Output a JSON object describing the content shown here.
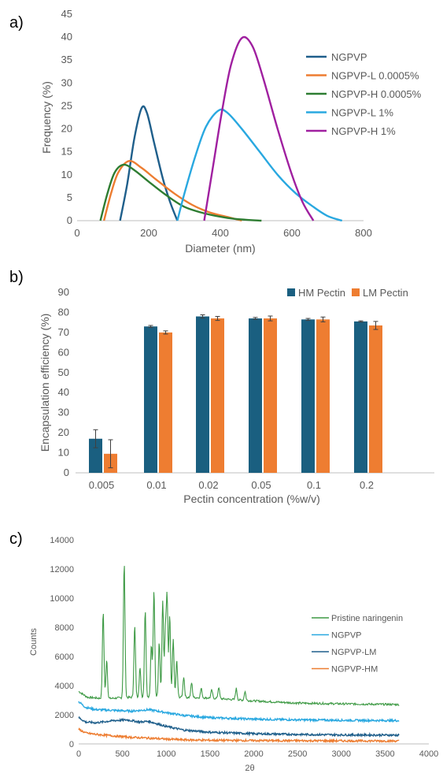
{
  "panels": {
    "a": "a)",
    "b": "b)",
    "c": "c)"
  },
  "chart_data": [
    {
      "id": "a",
      "type": "line",
      "xlabel": "Diameter (nm)",
      "ylabel": "Frequency (%)",
      "xlim": [
        0,
        800
      ],
      "ylim": [
        0,
        45
      ],
      "xticks": [
        0,
        200,
        400,
        600,
        800
      ],
      "yticks": [
        0,
        5,
        10,
        15,
        20,
        25,
        30,
        35,
        40,
        45
      ],
      "grid": false,
      "legend_position": "right",
      "series": [
        {
          "name": "NGPVP",
          "color": "#1f5f8b",
          "points": [
            [
              120,
              0
            ],
            [
              140,
              8
            ],
            [
              160,
              18
            ],
            [
              180,
              24.5
            ],
            [
              195,
              23.5
            ],
            [
              215,
              17
            ],
            [
              240,
              9
            ],
            [
              260,
              4
            ],
            [
              280,
              0
            ]
          ]
        },
        {
          "name": "NGPVP-L 0.0005%",
          "color": "#ed7d31",
          "points": [
            [
              75,
              0
            ],
            [
              95,
              6
            ],
            [
              115,
              10.5
            ],
            [
              145,
              13
            ],
            [
              180,
              11.5
            ],
            [
              220,
              9
            ],
            [
              270,
              6
            ],
            [
              320,
              3.5
            ],
            [
              370,
              1.8
            ],
            [
              420,
              0.8
            ],
            [
              460,
              0
            ]
          ]
        },
        {
          "name": "NGPVP-H 0.0005%",
          "color": "#2e7d32",
          "points": [
            [
              65,
              0
            ],
            [
              85,
              6
            ],
            [
              105,
              10.5
            ],
            [
              130,
              12.2
            ],
            [
              160,
              11
            ],
            [
              200,
              8.5
            ],
            [
              250,
              5.5
            ],
            [
              300,
              3
            ],
            [
              360,
              1.5
            ],
            [
              420,
              0.6
            ],
            [
              470,
              0.2
            ],
            [
              515,
              0
            ]
          ]
        },
        {
          "name": "NGPVP-L 1%",
          "color": "#29a8e0",
          "points": [
            [
              280,
              0
            ],
            [
              300,
              6
            ],
            [
              330,
              14
            ],
            [
              360,
              20.5
            ],
            [
              395,
              24
            ],
            [
              420,
              23.5
            ],
            [
              460,
              20
            ],
            [
              510,
              15
            ],
            [
              560,
              10
            ],
            [
              610,
              6
            ],
            [
              660,
              3
            ],
            [
              700,
              1
            ],
            [
              740,
              0
            ]
          ]
        },
        {
          "name": "NGPVP-H 1%",
          "color": "#a020a0",
          "points": [
            [
              355,
              0
            ],
            [
              380,
              12
            ],
            [
              405,
              24
            ],
            [
              430,
              34
            ],
            [
              460,
              39.8
            ],
            [
              490,
              38
            ],
            [
              520,
              31
            ],
            [
              560,
              20
            ],
            [
              600,
              10
            ],
            [
              630,
              4
            ],
            [
              660,
              0
            ]
          ]
        }
      ]
    },
    {
      "id": "b",
      "type": "bar",
      "xlabel": "Pectin concentration (%w/v)",
      "ylabel": "Encapsulation efficiency (%)",
      "ylim": [
        0,
        90
      ],
      "yticks": [
        0,
        10,
        20,
        30,
        40,
        50,
        60,
        70,
        80,
        90
      ],
      "categories": [
        "0.005",
        "0.01",
        "0.02",
        "0.05",
        "0.1",
        "0.2"
      ],
      "grid": false,
      "legend_position": "top-right",
      "series": [
        {
          "name": "HM Pectin",
          "color": "#1a5f80",
          "values": [
            17,
            73,
            78,
            77,
            76.5,
            75.5
          ],
          "errors": [
            4.5,
            0.5,
            0.8,
            0.5,
            0.5,
            0.3
          ]
        },
        {
          "name": "LM Pectin",
          "color": "#ee7d31",
          "values": [
            9.5,
            70,
            77,
            77,
            76.5,
            73.5
          ],
          "errors": [
            7,
            0.8,
            1,
            1.2,
            1.2,
            2
          ]
        }
      ]
    },
    {
      "id": "c",
      "type": "line",
      "xlabel": "2θ",
      "ylabel": "Counts",
      "xlim": [
        0,
        4000
      ],
      "ylim": [
        0,
        14000
      ],
      "xticks": [
        0,
        500,
        1000,
        1500,
        2000,
        2500,
        3000,
        3500,
        4000
      ],
      "yticks": [
        0,
        2000,
        4000,
        6000,
        8000,
        10000,
        12000,
        14000
      ],
      "grid": false,
      "legend_position": "right",
      "series": [
        {
          "name": "Pristine naringenin",
          "color": "#3e9a45",
          "baseline": [
            [
              0,
              3600
            ],
            [
              100,
              3200
            ],
            [
              300,
              3100
            ],
            [
              600,
              3200
            ],
            [
              900,
              3250
            ],
            [
              1200,
              3200
            ],
            [
              1500,
              3150
            ],
            [
              2000,
              2950
            ],
            [
              2500,
              2800
            ],
            [
              3000,
              2750
            ],
            [
              3660,
              2700
            ]
          ],
          "peaks": [
            [
              280,
              9100
            ],
            [
              320,
              5800
            ],
            [
              520,
              12400
            ],
            [
              640,
              8100
            ],
            [
              700,
              5200
            ],
            [
              760,
              9200
            ],
            [
              830,
              6800
            ],
            [
              860,
              10500
            ],
            [
              920,
              7000
            ],
            [
              960,
              9800
            ],
            [
              990,
              7600
            ],
            [
              1010,
              10000
            ],
            [
              1040,
              8800
            ],
            [
              1080,
              7200
            ],
            [
              1120,
              5700
            ],
            [
              1200,
              4600
            ],
            [
              1290,
              4200
            ],
            [
              1400,
              3800
            ],
            [
              1520,
              3700
            ],
            [
              1600,
              3900
            ],
            [
              1800,
              3800
            ],
            [
              1900,
              3600
            ]
          ]
        },
        {
          "name": "NGPVP",
          "color": "#29a8e0",
          "points": [
            [
              0,
              2900
            ],
            [
              80,
              2500
            ],
            [
              200,
              2350
            ],
            [
              400,
              2300
            ],
            [
              600,
              2250
            ],
            [
              800,
              2350
            ],
            [
              1000,
              2150
            ],
            [
              1200,
              1950
            ],
            [
              1500,
              1800
            ],
            [
              2000,
              1700
            ],
            [
              2500,
              1650
            ],
            [
              3000,
              1620
            ],
            [
              3660,
              1600
            ]
          ]
        },
        {
          "name": "NGPVP-LM",
          "color": "#1f5f8b",
          "points": [
            [
              0,
              1800
            ],
            [
              80,
              1500
            ],
            [
              200,
              1450
            ],
            [
              400,
              1600
            ],
            [
              550,
              1650
            ],
            [
              700,
              1500
            ],
            [
              800,
              1550
            ],
            [
              1000,
              1200
            ],
            [
              1200,
              950
            ],
            [
              1500,
              800
            ],
            [
              2000,
              700
            ],
            [
              2500,
              650
            ],
            [
              3000,
              620
            ],
            [
              3660,
              600
            ]
          ]
        },
        {
          "name": "NGPVP-HM",
          "color": "#ed7d31",
          "points": [
            [
              0,
              1000
            ],
            [
              80,
              750
            ],
            [
              200,
              650
            ],
            [
              400,
              550
            ],
            [
              600,
              450
            ],
            [
              800,
              400
            ],
            [
              1000,
              330
            ],
            [
              1200,
              280
            ],
            [
              1500,
              250
            ],
            [
              2000,
              230
            ],
            [
              2500,
              220
            ],
            [
              3000,
              210
            ],
            [
              3660,
              200
            ]
          ]
        }
      ]
    }
  ]
}
